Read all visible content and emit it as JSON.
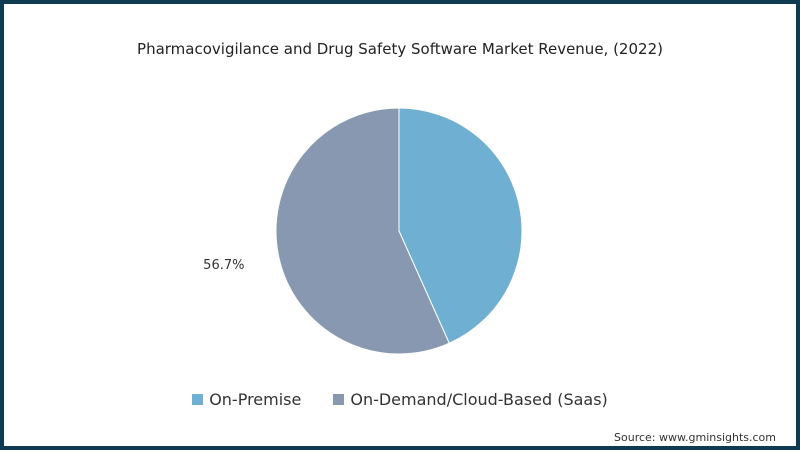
{
  "chart_data": {
    "type": "pie",
    "title": "Pharmacovigilance and Drug Safety Software Market Revenue, (2022)",
    "slices": [
      {
        "label": "On-Premise",
        "value": 43.3,
        "color": "#6fafd2",
        "data_label": ""
      },
      {
        "label": "On-Demand/Cloud-Based (Saas)",
        "value": 56.7,
        "color": "#8898b1",
        "data_label": "56.7%"
      }
    ],
    "legend_position": "bottom",
    "source": "Source: www.gminsights.com"
  }
}
